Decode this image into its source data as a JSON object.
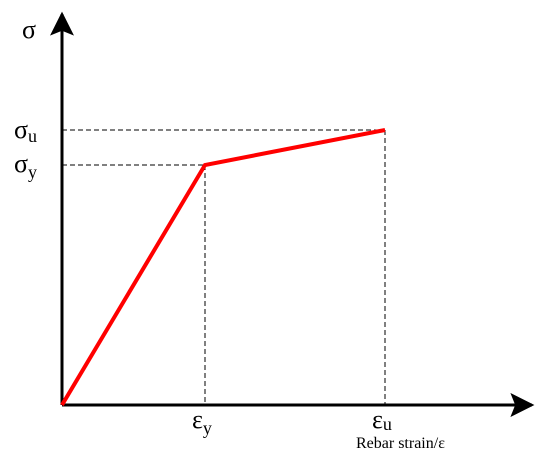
{
  "y_axis": {
    "label": "σ"
  },
  "stress_labels": [
    {
      "symbol": "σ",
      "subscript": "u"
    },
    {
      "symbol": "σ",
      "subscript": "y"
    }
  ],
  "strain_labels": [
    {
      "symbol": "ε",
      "subscript": "y"
    },
    {
      "symbol": "ε",
      "subscript": "u"
    }
  ],
  "x_axis": {
    "label": "Rebar strain/ε"
  }
}
